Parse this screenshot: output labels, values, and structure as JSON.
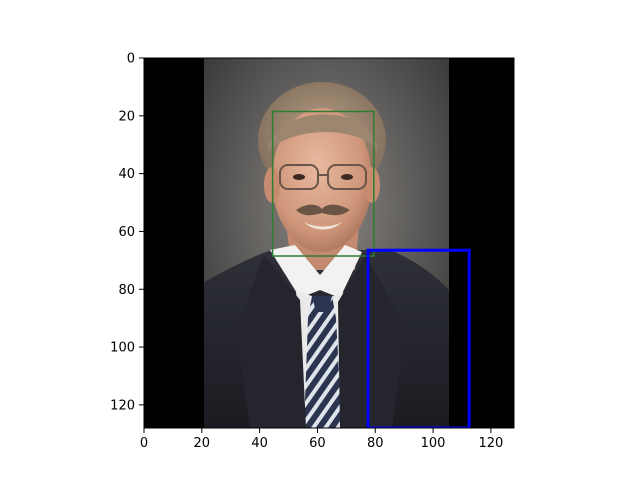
{
  "image_plot": {
    "type": "image",
    "xlim": [
      0,
      128
    ],
    "ylim": [
      128,
      0
    ],
    "x_ticks": [
      {
        "value": 0,
        "label": "0"
      },
      {
        "value": 20,
        "label": "20"
      },
      {
        "value": 40,
        "label": "40"
      },
      {
        "value": 60,
        "label": "60"
      },
      {
        "value": 80,
        "label": "80"
      },
      {
        "value": 100,
        "label": "100"
      },
      {
        "value": 120,
        "label": "120"
      }
    ],
    "y_ticks": [
      {
        "value": 0,
        "label": "0"
      },
      {
        "value": 20,
        "label": "20"
      },
      {
        "value": 40,
        "label": "40"
      },
      {
        "value": 60,
        "label": "60"
      },
      {
        "value": 80,
        "label": "80"
      },
      {
        "value": 100,
        "label": "100"
      },
      {
        "value": 120,
        "label": "120"
      }
    ],
    "photo_extent_x": [
      21,
      106
    ],
    "boxes": [
      {
        "name": "face-box",
        "color": "#2e7d32",
        "x0": 44.5,
        "y0": 18.5,
        "x1": 79.5,
        "y1": 68.5
      },
      {
        "name": "lower-box",
        "color": "#0000ff",
        "x0": 77.5,
        "y0": 66.5,
        "x1": 112.5,
        "y1": 128
      }
    ]
  }
}
